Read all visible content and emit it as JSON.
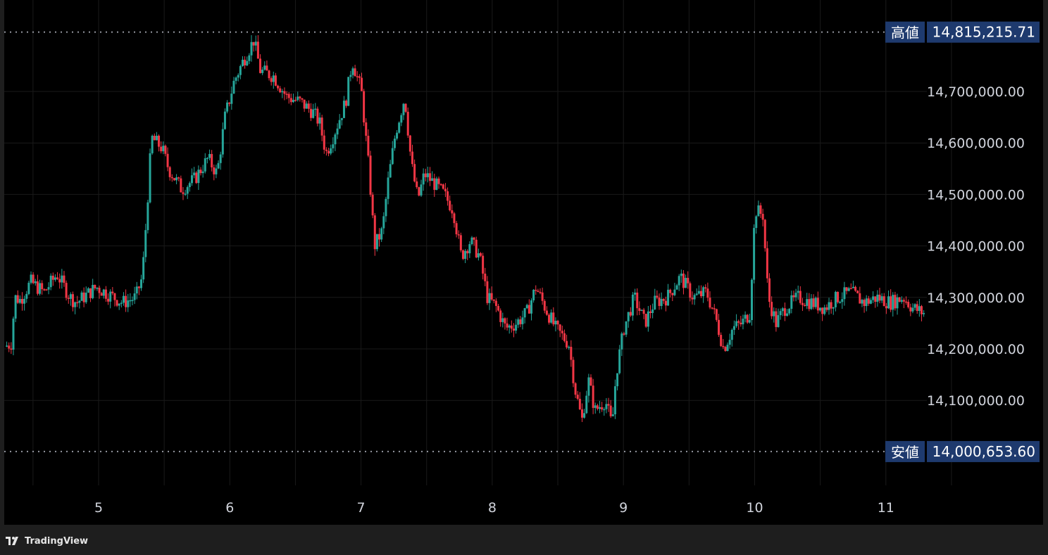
{
  "footer": {
    "brand": "TradingView",
    "logo_icon": "tradingview-logo-icon"
  },
  "chart_data": {
    "type": "candlestick",
    "title": "",
    "colors": {
      "up": "#26a69a",
      "down": "#f23645",
      "background": "#000000",
      "grid": "#1a1a1a",
      "marker_line": "#9598a1",
      "tag_bg": "#1e3a6e"
    },
    "x_tick_labels": [
      "5",
      "6",
      "7",
      "8",
      "9",
      "10",
      "11"
    ],
    "y_tick_labels": [
      "14,700,000.00",
      "14,600,000.00",
      "14,500,000.00",
      "14,400,000.00",
      "14,300,000.00",
      "14,200,000.00",
      "14,100,000.00"
    ],
    "y_ticks": [
      14700000,
      14600000,
      14500000,
      14400000,
      14300000,
      14200000,
      14100000
    ],
    "ylim": [
      13930000,
      14870000
    ],
    "high_marker": {
      "label": "高値",
      "value_text": "14,815,215.71",
      "value": 14815215.71
    },
    "low_marker": {
      "label": "安値",
      "value_text": "14,000,653.60",
      "value": 14000653.6
    },
    "grid": true,
    "series_path": [
      [
        4.3,
        14205000
      ],
      [
        4.35,
        14210000
      ],
      [
        4.38,
        14300000
      ],
      [
        4.42,
        14295000
      ],
      [
        4.5,
        14330000
      ],
      [
        4.6,
        14310000
      ],
      [
        4.7,
        14345000
      ],
      [
        4.8,
        14300000
      ],
      [
        4.85,
        14290000
      ],
      [
        4.95,
        14310000
      ],
      [
        5.0,
        14320000
      ],
      [
        5.1,
        14305000
      ],
      [
        5.2,
        14290000
      ],
      [
        5.3,
        14300000
      ],
      [
        5.35,
        14340000
      ],
      [
        5.38,
        14450000
      ],
      [
        5.42,
        14610000
      ],
      [
        5.5,
        14590000
      ],
      [
        5.55,
        14550000
      ],
      [
        5.65,
        14510000
      ],
      [
        5.75,
        14530000
      ],
      [
        5.85,
        14570000
      ],
      [
        5.92,
        14540000
      ],
      [
        5.98,
        14650000
      ],
      [
        6.05,
        14720000
      ],
      [
        6.12,
        14760000
      ],
      [
        6.2,
        14800000
      ],
      [
        6.25,
        14740000
      ],
      [
        6.35,
        14730000
      ],
      [
        6.45,
        14690000
      ],
      [
        6.55,
        14680000
      ],
      [
        6.65,
        14660000
      ],
      [
        6.7,
        14640000
      ],
      [
        6.75,
        14580000
      ],
      [
        6.8,
        14610000
      ],
      [
        6.9,
        14680000
      ],
      [
        6.95,
        14760000
      ],
      [
        7.02,
        14700000
      ],
      [
        7.08,
        14540000
      ],
      [
        7.12,
        14400000
      ],
      [
        7.18,
        14430000
      ],
      [
        7.22,
        14520000
      ],
      [
        7.28,
        14620000
      ],
      [
        7.35,
        14690000
      ],
      [
        7.4,
        14560000
      ],
      [
        7.45,
        14490000
      ],
      [
        7.5,
        14540000
      ],
      [
        7.58,
        14520000
      ],
      [
        7.65,
        14500000
      ],
      [
        7.72,
        14470000
      ],
      [
        7.78,
        14380000
      ],
      [
        7.85,
        14410000
      ],
      [
        7.92,
        14380000
      ],
      [
        7.98,
        14300000
      ],
      [
        8.05,
        14280000
      ],
      [
        8.12,
        14240000
      ],
      [
        8.2,
        14250000
      ],
      [
        8.28,
        14270000
      ],
      [
        8.35,
        14320000
      ],
      [
        8.42,
        14280000
      ],
      [
        8.5,
        14240000
      ],
      [
        8.6,
        14210000
      ],
      [
        8.65,
        14120000
      ],
      [
        8.7,
        14060000
      ],
      [
        8.75,
        14140000
      ],
      [
        8.8,
        14080000
      ],
      [
        8.88,
        14100000
      ],
      [
        8.93,
        14050000
      ],
      [
        8.96,
        14150000
      ],
      [
        9.02,
        14240000
      ],
      [
        9.1,
        14300000
      ],
      [
        9.18,
        14250000
      ],
      [
        9.25,
        14290000
      ],
      [
        9.35,
        14300000
      ],
      [
        9.45,
        14340000
      ],
      [
        9.55,
        14300000
      ],
      [
        9.65,
        14310000
      ],
      [
        9.72,
        14260000
      ],
      [
        9.78,
        14200000
      ],
      [
        9.85,
        14240000
      ],
      [
        9.92,
        14250000
      ],
      [
        9.98,
        14270000
      ],
      [
        10.02,
        14470000
      ],
      [
        10.08,
        14460000
      ],
      [
        10.12,
        14300000
      ],
      [
        10.18,
        14250000
      ],
      [
        10.25,
        14280000
      ],
      [
        10.35,
        14300000
      ],
      [
        10.45,
        14290000
      ],
      [
        10.55,
        14280000
      ],
      [
        10.65,
        14300000
      ],
      [
        10.75,
        14310000
      ],
      [
        10.85,
        14290000
      ],
      [
        10.95,
        14300000
      ],
      [
        11.05,
        14290000
      ],
      [
        11.15,
        14300000
      ],
      [
        11.22,
        14280000
      ],
      [
        11.3,
        14270000
      ]
    ]
  }
}
